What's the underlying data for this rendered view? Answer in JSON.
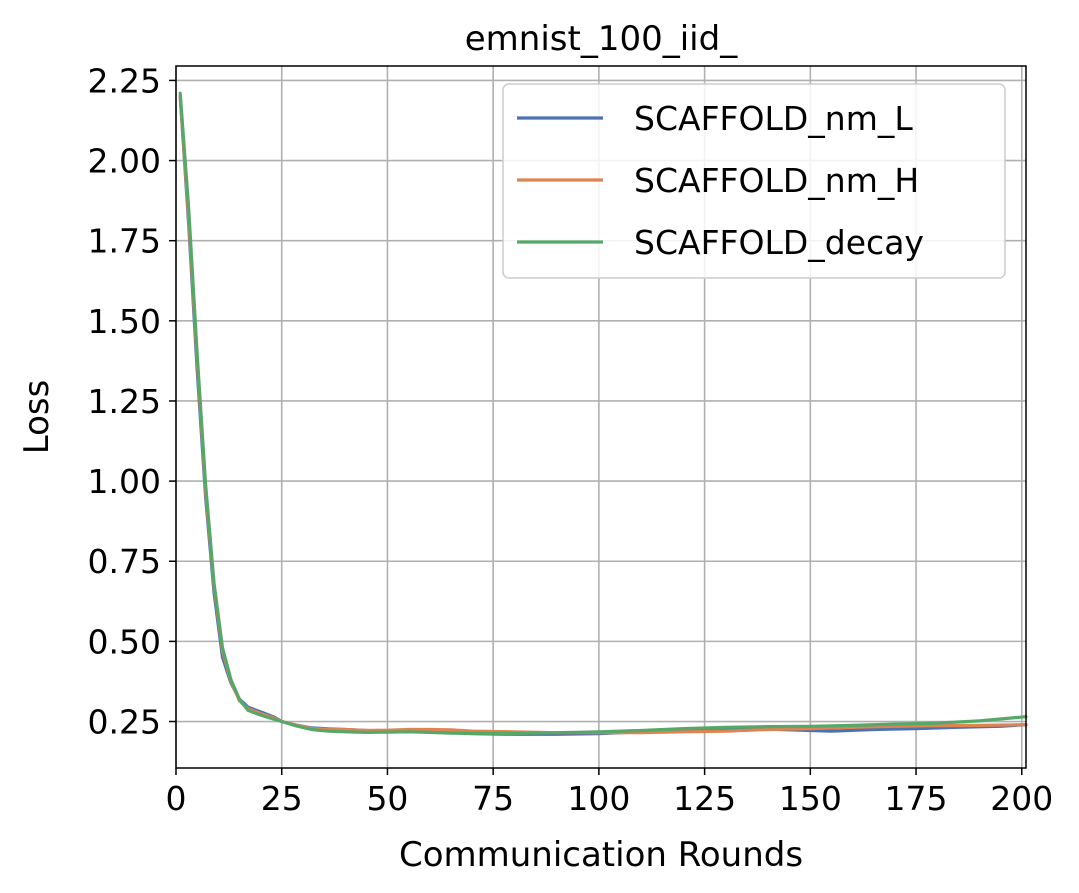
{
  "chart_data": {
    "type": "line",
    "title": "emnist_100_iid_",
    "xlabel": "Communication Rounds",
    "ylabel": "Loss",
    "xlim": [
      0,
      201
    ],
    "ylim": [
      0.105,
      2.295
    ],
    "xticks": [
      0,
      25,
      50,
      75,
      100,
      125,
      150,
      175,
      200
    ],
    "xtick_labels": [
      "0",
      "25",
      "50",
      "75",
      "100",
      "125",
      "150",
      "175",
      "200"
    ],
    "yticks": [
      0.25,
      0.5,
      0.75,
      1.0,
      1.25,
      1.5,
      1.75,
      2.0,
      2.25
    ],
    "ytick_labels": [
      "0.25",
      "0.50",
      "0.75",
      "1.00",
      "1.25",
      "1.50",
      "1.75",
      "2.00",
      "2.25"
    ],
    "grid": true,
    "legend_position": "top-right",
    "series": [
      {
        "name": "SCAFFOLD_nm_L",
        "color": "#4c72b0",
        "x": [
          1,
          3,
          5,
          7,
          9,
          11,
          13,
          15,
          17,
          20,
          23,
          25,
          28,
          32,
          36,
          40,
          45,
          50,
          55,
          60,
          65,
          70,
          80,
          90,
          100,
          110,
          120,
          130,
          140,
          150,
          155,
          165,
          175,
          185,
          195,
          201
        ],
        "y": [
          2.2,
          1.8,
          1.35,
          0.95,
          0.65,
          0.45,
          0.37,
          0.32,
          0.295,
          0.28,
          0.265,
          0.25,
          0.24,
          0.23,
          0.227,
          0.225,
          0.222,
          0.22,
          0.22,
          0.218,
          0.215,
          0.212,
          0.21,
          0.21,
          0.212,
          0.218,
          0.225,
          0.228,
          0.226,
          0.222,
          0.22,
          0.225,
          0.228,
          0.232,
          0.235,
          0.24
        ]
      },
      {
        "name": "SCAFFOLD_nm_H",
        "color": "#dd8452",
        "x": [
          1,
          3,
          5,
          7,
          9,
          11,
          13,
          15,
          17,
          20,
          23,
          25,
          28,
          32,
          36,
          40,
          45,
          50,
          55,
          60,
          65,
          70,
          80,
          90,
          100,
          110,
          120,
          130,
          140,
          150,
          160,
          170,
          180,
          190,
          201
        ],
        "y": [
          2.2,
          1.82,
          1.38,
          0.97,
          0.67,
          0.47,
          0.375,
          0.315,
          0.29,
          0.275,
          0.262,
          0.25,
          0.24,
          0.228,
          0.225,
          0.225,
          0.222,
          0.223,
          0.225,
          0.225,
          0.224,
          0.22,
          0.218,
          0.215,
          0.215,
          0.215,
          0.218,
          0.22,
          0.225,
          0.228,
          0.232,
          0.235,
          0.237,
          0.238,
          0.24
        ]
      },
      {
        "name": "SCAFFOLD_decay",
        "color": "#55a868",
        "x": [
          1,
          3,
          5,
          7,
          9,
          11,
          13,
          15,
          17,
          20,
          23,
          25,
          28,
          32,
          36,
          40,
          45,
          50,
          55,
          60,
          65,
          70,
          80,
          90,
          100,
          110,
          120,
          130,
          140,
          150,
          160,
          170,
          180,
          190,
          201
        ],
        "y": [
          2.21,
          1.85,
          1.4,
          0.99,
          0.68,
          0.48,
          0.38,
          0.32,
          0.285,
          0.27,
          0.258,
          0.25,
          0.238,
          0.225,
          0.22,
          0.218,
          0.216,
          0.217,
          0.218,
          0.216,
          0.214,
          0.213,
          0.213,
          0.215,
          0.218,
          0.222,
          0.228,
          0.232,
          0.234,
          0.235,
          0.238,
          0.242,
          0.245,
          0.252,
          0.265
        ]
      }
    ]
  }
}
